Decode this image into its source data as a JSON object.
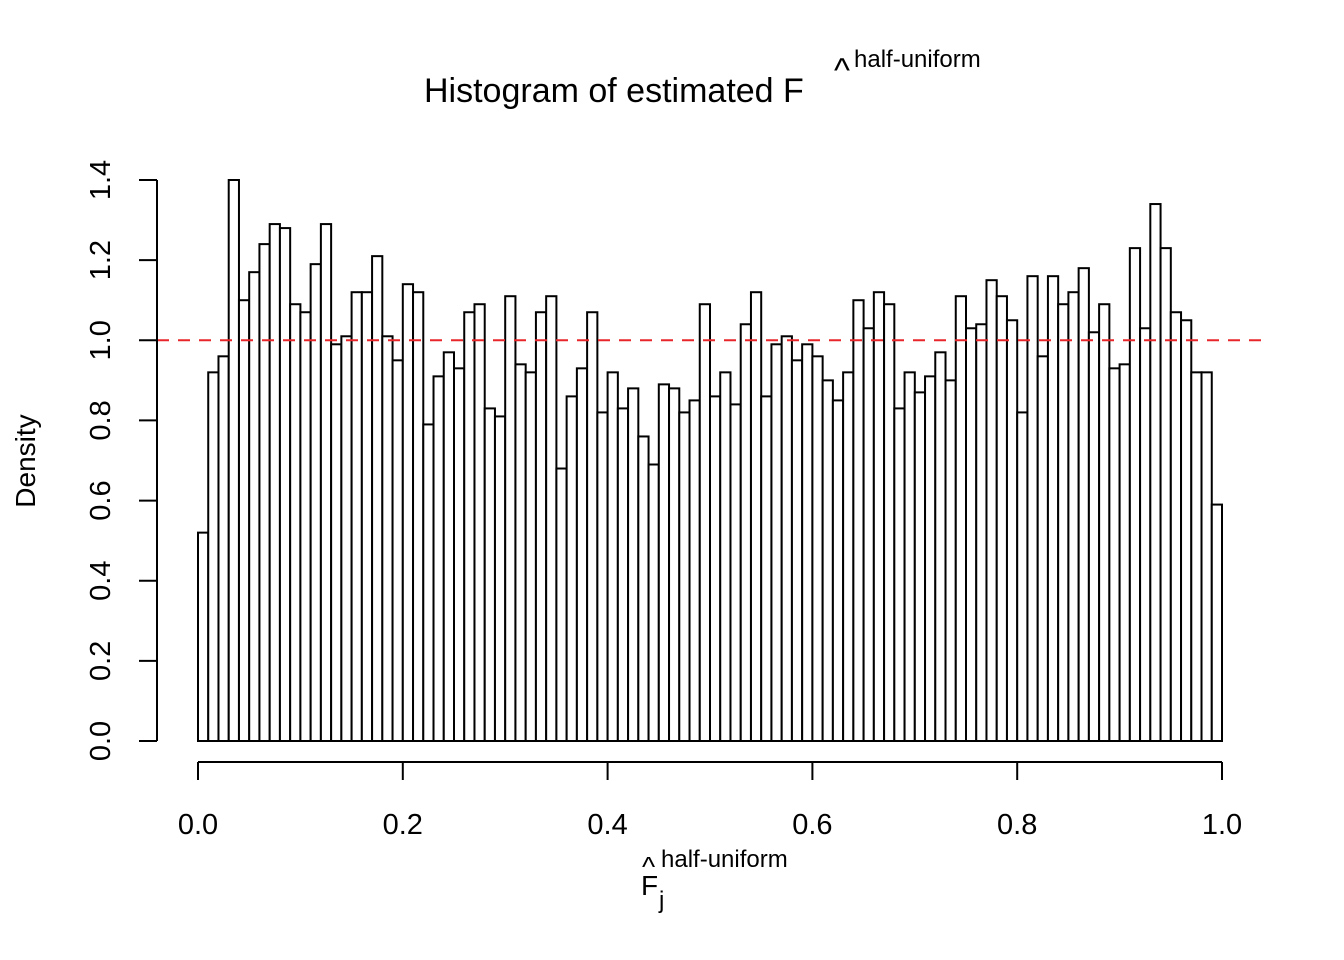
{
  "chart_data": {
    "type": "bar",
    "title": {
      "main": "Histogram of estimated F",
      "superscript": "half-uniform"
    },
    "xlabel": {
      "main": "F",
      "subscript": "j",
      "superscript": "half-uniform"
    },
    "ylabel": "Density",
    "xlim": [
      0,
      1
    ],
    "ylim": [
      0,
      1.4
    ],
    "xticks": [
      "0.0",
      "0.2",
      "0.4",
      "0.6",
      "0.8",
      "1.0"
    ],
    "yticks": [
      "0.0",
      "0.2",
      "0.4",
      "0.6",
      "0.8",
      "1.0",
      "1.2",
      "1.4"
    ],
    "bin_width": 0.01,
    "values": [
      0.52,
      0.92,
      0.96,
      1.4,
      1.1,
      1.17,
      1.24,
      1.29,
      1.28,
      1.09,
      1.07,
      1.19,
      1.29,
      0.99,
      1.01,
      1.12,
      1.12,
      1.21,
      1.01,
      0.95,
      1.14,
      1.12,
      0.79,
      0.91,
      0.97,
      0.93,
      1.07,
      1.09,
      0.83,
      0.81,
      1.11,
      0.94,
      0.92,
      1.07,
      1.11,
      0.68,
      0.86,
      0.93,
      1.07,
      0.82,
      0.92,
      0.83,
      0.88,
      0.76,
      0.69,
      0.89,
      0.88,
      0.82,
      0.85,
      1.09,
      0.86,
      0.92,
      0.84,
      1.04,
      1.12,
      0.86,
      0.99,
      1.01,
      0.95,
      0.99,
      0.96,
      0.9,
      0.85,
      0.92,
      1.1,
      1.03,
      1.12,
      1.09,
      0.83,
      0.92,
      0.87,
      0.91,
      0.97,
      0.9,
      1.11,
      1.03,
      1.04,
      1.15,
      1.11,
      1.05,
      0.82,
      1.16,
      0.96,
      1.16,
      1.09,
      1.12,
      1.18,
      1.02,
      1.09,
      0.93,
      0.94,
      1.23,
      1.03,
      1.34,
      1.23,
      1.07,
      1.05,
      0.92,
      0.92,
      0.59
    ],
    "reference_line": {
      "y": 1.0,
      "style": "dashed",
      "color": "#e8262a"
    },
    "bar_fill": "#ffffff",
    "bar_stroke": "#000000",
    "grid": false,
    "legend": "none"
  }
}
